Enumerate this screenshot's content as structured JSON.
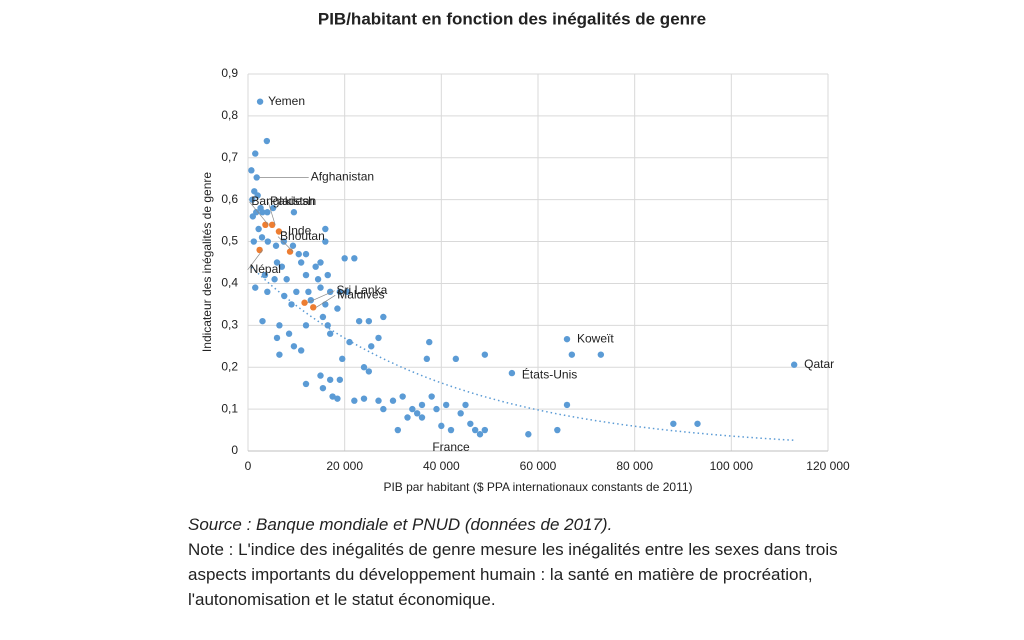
{
  "chart_data": {
    "type": "scatter",
    "title": "PIB/habitant en fonction des inégalités de genre",
    "x_label": "PIB par habitant ($ PPA internationaux constants de 2011)",
    "y_label": "Indicateur des inégalités de genre",
    "xlim": [
      0,
      120000
    ],
    "ylim": [
      0,
      0.9
    ],
    "xticks": [
      0,
      {
        "value": 20000,
        "label": "20 000"
      },
      {
        "value": 40000,
        "label": "40 000"
      },
      {
        "value": 60000,
        "label": "60 000"
      },
      {
        "value": 80000,
        "label": "80 000"
      },
      {
        "value": 100000,
        "label": "100 000"
      },
      {
        "value": 120000,
        "label": "120 000"
      }
    ],
    "yticks": [
      0,
      {
        "value": 0.1,
        "label": "0,1"
      },
      {
        "value": 0.2,
        "label": "0,2"
      },
      {
        "value": 0.3,
        "label": "0,3"
      },
      {
        "value": 0.4,
        "label": "0,4"
      },
      {
        "value": 0.5,
        "label": "0,5"
      },
      {
        "value": 0.6,
        "label": "0,6"
      },
      {
        "value": 0.7,
        "label": "0,7"
      },
      {
        "value": 0.8,
        "label": "0,8"
      },
      {
        "value": 0.9,
        "label": "0,9"
      }
    ],
    "grid": true,
    "trendline": "exponential",
    "series": [
      {
        "color": "#5b9bd5",
        "x": [
          2500,
          1800,
          113000,
          66000,
          54600,
          42000
        ],
        "y": [
          0.834,
          0.653,
          0.206,
          0.267,
          0.186,
          0.05
        ],
        "labels": [
          "Yemen",
          "Afghanistan",
          "Qatar",
          "Koweït",
          "États-Unis",
          "France"
        ]
      },
      {
        "color": "#5b9bd5",
        "x": [
          3900,
          1500,
          700,
          1300,
          900,
          2000,
          2600,
          1000,
          1700,
          3000,
          4000,
          5200,
          9500,
          2200,
          2900,
          1200,
          4100,
          5800,
          7400,
          9300,
          10500,
          12000,
          16000,
          16000,
          20000,
          22000,
          6000,
          7000,
          11000,
          14000,
          15000,
          3500,
          5500,
          8000,
          12000,
          14500,
          16500,
          1500,
          4000,
          7500,
          10000,
          12500,
          15000,
          17000,
          19000,
          20500,
          9000,
          13000,
          16000,
          18500,
          3000,
          6500,
          8500,
          12000,
          15500,
          16500,
          23000,
          25000,
          28000,
          6000,
          9500,
          17000,
          21000,
          25500,
          27000,
          6500,
          11000,
          19500,
          24000,
          25000,
          37500,
          37000,
          43000,
          49000,
          67000,
          73000,
          12000,
          15000,
          17000,
          19000,
          15500,
          17500,
          18500,
          22000,
          24000,
          27000,
          30000,
          32000,
          34000,
          35000,
          36000,
          38000,
          39000,
          41000,
          44000,
          45000,
          28000,
          33000,
          36000,
          40000,
          46000,
          47000,
          48000,
          31000,
          49000,
          58000,
          64000,
          66000,
          88000,
          93000
        ],
        "y": [
          0.74,
          0.71,
          0.67,
          0.62,
          0.6,
          0.61,
          0.58,
          0.56,
          0.57,
          0.57,
          0.57,
          0.58,
          0.57,
          0.53,
          0.51,
          0.5,
          0.5,
          0.49,
          0.5,
          0.49,
          0.47,
          0.47,
          0.53,
          0.5,
          0.46,
          0.46,
          0.45,
          0.44,
          0.45,
          0.44,
          0.45,
          0.42,
          0.41,
          0.41,
          0.42,
          0.41,
          0.42,
          0.39,
          0.38,
          0.37,
          0.38,
          0.38,
          0.39,
          0.38,
          0.38,
          0.38,
          0.35,
          0.36,
          0.35,
          0.34,
          0.31,
          0.3,
          0.28,
          0.3,
          0.32,
          0.3,
          0.31,
          0.31,
          0.32,
          0.27,
          0.25,
          0.28,
          0.26,
          0.25,
          0.27,
          0.23,
          0.24,
          0.22,
          0.2,
          0.19,
          0.26,
          0.22,
          0.22,
          0.23,
          0.23,
          0.23,
          0.16,
          0.18,
          0.17,
          0.17,
          0.15,
          0.13,
          0.125,
          0.12,
          0.125,
          0.12,
          0.12,
          0.13,
          0.1,
          0.09,
          0.11,
          0.13,
          0.1,
          0.11,
          0.09,
          0.11,
          0.1,
          0.08,
          0.08,
          0.06,
          0.065,
          0.05,
          0.04,
          0.05,
          0.05,
          0.04,
          0.05,
          0.11,
          0.065,
          0.065
        ]
      },
      {
        "color": "#ed7d31",
        "x": [
          3600,
          5000,
          6400,
          8700,
          2400,
          11700,
          13500
        ],
        "y": [
          0.54,
          0.54,
          0.524,
          0.476,
          0.48,
          0.354,
          0.343
        ],
        "labels": [
          "Bangladesh",
          "Pakistan",
          "Inde",
          "Bhoutan",
          "Népal",
          "Sri Lanka",
          "Maldives"
        ]
      }
    ],
    "source": "Source : Banque mondiale et PNUD (données de 2017).",
    "note": "Note : L'indice des inégalités de genre mesure les inégalités entre les sexes dans trois aspects importants du développement humain : la santé en matière de procréation, l'autonomisation  et le statut économique."
  }
}
